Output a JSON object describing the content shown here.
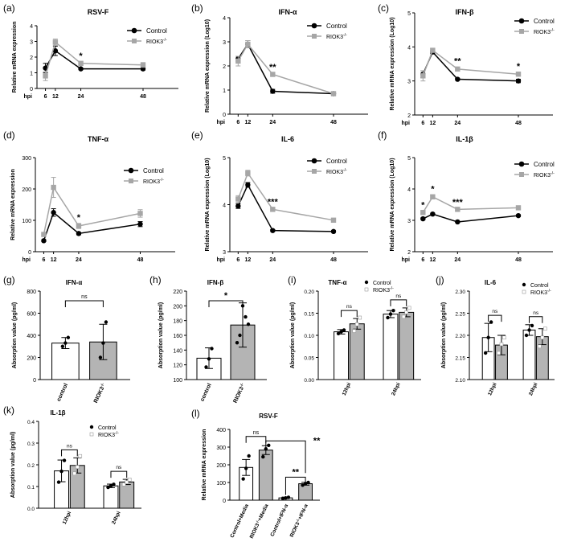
{
  "colors": {
    "control": "#000000",
    "riok3": "#a6a6a6",
    "bar_control": "#ffffff",
    "bar_riok3": "#b4b4b4"
  },
  "legend": {
    "control": "Control",
    "riok3_base": "RIOK3",
    "riok3_sup": "-/-"
  },
  "ticklabel_units": {
    "hpi": "hpi"
  },
  "group_labels": {
    "control": "control",
    "riok3_base": "RIOK3",
    "riok3_sup": "-/-",
    "h12": "12hpi",
    "h24": "24hpi",
    "l_control_media": "Control+Media",
    "l_riok3_media_mid": "+Media",
    "l_control_ifn": "Control+IFN-α",
    "l_riok3_ifn_mid": "+IFN-α"
  },
  "chart_data": [
    {
      "panel": "(a)",
      "type": "line",
      "title": "RSV-F",
      "ylabel": "Relative mRNA expression",
      "xlabel": "hpi",
      "x": [
        6,
        12,
        24,
        48
      ],
      "ylim": [
        0,
        4
      ],
      "yticks": [
        "0",
        "1",
        "2",
        "3",
        "4"
      ],
      "series": [
        {
          "name": "Control",
          "values": [
            1.3,
            2.4,
            1.25,
            1.25
          ],
          "err": [
            0.3,
            0.3,
            0.05,
            0.08
          ]
        },
        {
          "name": "RIOK3-/-",
          "values": [
            0.8,
            2.95,
            1.6,
            1.5
          ],
          "err": [
            0.3,
            0.2,
            0.1,
            0.15
          ]
        }
      ],
      "annotations": [
        {
          "x": 24,
          "text": "*"
        }
      ]
    },
    {
      "panel": "(b)",
      "type": "line",
      "title": "IFN-α",
      "ylabel": "Relative mRNA expression (Log10)",
      "xlabel": "hpi",
      "x": [
        6,
        12,
        24,
        48
      ],
      "ylim": [
        0,
        4
      ],
      "yticks": [
        "0",
        "1",
        "2",
        "3",
        "4"
      ],
      "series": [
        {
          "name": "Control",
          "values": [
            2.3,
            2.9,
            0.95,
            0.85
          ],
          "err": [
            0.1,
            0.15,
            0.08,
            0.05
          ]
        },
        {
          "name": "RIOK3-/-",
          "values": [
            2.2,
            2.9,
            1.65,
            0.85
          ],
          "err": [
            0.2,
            0.15,
            0.05,
            0.05
          ]
        }
      ],
      "annotations": [
        {
          "x": 24,
          "text": "**"
        }
      ]
    },
    {
      "panel": "(c)",
      "type": "line",
      "title": "IFN-β",
      "ylabel": "Relative mRNA expression (Log10)",
      "xlabel": "hpi",
      "x": [
        6,
        12,
        24,
        48
      ],
      "ylim": [
        2,
        5
      ],
      "yticks": [
        "2",
        "3",
        "4",
        "5"
      ],
      "series": [
        {
          "name": "Control",
          "values": [
            3.2,
            3.85,
            3.05,
            3.0
          ],
          "err": [
            0.1,
            0.05,
            0.03,
            0.05
          ]
        },
        {
          "name": "RIOK3-/-",
          "values": [
            3.15,
            3.9,
            3.35,
            3.2
          ],
          "err": [
            0.15,
            0.05,
            0.05,
            0.05
          ]
        }
      ],
      "annotations": [
        {
          "x": 24,
          "text": "**"
        },
        {
          "x": 48,
          "text": "*"
        }
      ]
    },
    {
      "panel": "(d)",
      "type": "line",
      "title": "TNF-α",
      "ylabel": "Relative mRNA expression",
      "xlabel": "hpi",
      "x": [
        6,
        12,
        24,
        48
      ],
      "ylim": [
        0,
        300
      ],
      "yticks": [
        "0",
        "100",
        "200",
        "300"
      ],
      "series": [
        {
          "name": "Control",
          "values": [
            35,
            125,
            58,
            88
          ],
          "err": [
            3,
            12,
            4,
            8
          ]
        },
        {
          "name": "RIOK3-/-",
          "values": [
            55,
            205,
            82,
            122
          ],
          "err": [
            5,
            32,
            8,
            12
          ]
        }
      ],
      "annotations": [
        {
          "x": 24,
          "text": "*"
        }
      ]
    },
    {
      "panel": "(e)",
      "type": "line",
      "title": "IL-6",
      "ylabel": "Relative mRNA expression (Log10)",
      "xlabel": "hpi",
      "x": [
        6,
        12,
        24,
        48
      ],
      "ylim": [
        3,
        5
      ],
      "yticks": [
        "3",
        "4",
        "5"
      ],
      "series": [
        {
          "name": "Control",
          "values": [
            3.97,
            4.42,
            3.45,
            3.43
          ],
          "err": [
            0.05,
            0.05,
            0.02,
            0.02
          ]
        },
        {
          "name": "RIOK3-/-",
          "values": [
            4.12,
            4.67,
            3.9,
            3.67
          ],
          "err": [
            0.07,
            0.06,
            0.03,
            0.04
          ]
        }
      ],
      "annotations": [
        {
          "x": 24,
          "text": "***"
        }
      ]
    },
    {
      "panel": "(f)",
      "type": "line",
      "title": "IL-1β",
      "ylabel": "Relative mRNA expression (Log10)",
      "xlabel": "hpi",
      "x": [
        6,
        12,
        24,
        48
      ],
      "ylim": [
        2,
        5
      ],
      "yticks": [
        "2",
        "3",
        "4",
        "5"
      ],
      "series": [
        {
          "name": "Control",
          "values": [
            3.05,
            3.2,
            2.95,
            3.15
          ],
          "err": [
            0.03,
            0.03,
            0.02,
            0.03
          ]
        },
        {
          "name": "RIOK3-/-",
          "values": [
            3.25,
            3.75,
            3.35,
            3.4
          ],
          "err": [
            0.04,
            0.06,
            0.03,
            0.03
          ]
        }
      ],
      "annotations": [
        {
          "x": 6,
          "text": "*"
        },
        {
          "x": 12,
          "text": "*"
        },
        {
          "x": 24,
          "text": "***"
        }
      ]
    },
    {
      "panel": "(g)",
      "type": "bar",
      "title": "IFN-α",
      "ylabel": "Absorption value (pg/ml)",
      "categories": [
        "control",
        "RIOK3-/-"
      ],
      "values": [
        330,
        340
      ],
      "err": [
        50,
        160
      ],
      "points": [
        [
          300,
          330,
          380
        ],
        [
          200,
          330,
          520
        ]
      ],
      "ylim": [
        0,
        800
      ],
      "yticks": [
        "0",
        "200",
        "400",
        "600",
        "800"
      ],
      "annotations": [
        {
          "text": "ns"
        }
      ]
    },
    {
      "panel": "(h)",
      "type": "bar",
      "title": "IFN-β",
      "ylabel": "Absorption value (pg/ml)",
      "categories": [
        "control",
        "RIOK3-/-"
      ],
      "values": [
        129,
        174
      ],
      "err": [
        14,
        30
      ],
      "points": [
        [
          117,
          128,
          142
        ],
        [
          150,
          160,
          200,
          185,
          175
        ]
      ],
      "ylim": [
        100,
        220
      ],
      "yticks": [
        "100",
        "120",
        "140",
        "160",
        "180",
        "200",
        "220"
      ],
      "annotations": [
        {
          "text": "*"
        }
      ]
    },
    {
      "panel": "(i)",
      "type": "bar",
      "title": "TNF-α",
      "ylabel": "Absorption value (pg/ml)",
      "categories": [
        "12hpi",
        "24hpi"
      ],
      "series": [
        {
          "name": "Control",
          "values": [
            0.108,
            0.148
          ],
          "err": [
            0.005,
            0.008
          ],
          "points": [
            [
              0.104,
              0.108,
              0.112
            ],
            [
              0.14,
              0.148,
              0.156
            ]
          ]
        },
        {
          "name": "RIOK3-/-",
          "values": [
            0.126,
            0.152
          ],
          "err": [
            0.012,
            0.01
          ],
          "points": [
            [
              0.11,
              0.125,
              0.14
            ],
            [
              0.142,
              0.152,
              0.162
            ]
          ]
        }
      ],
      "ylim": [
        0,
        0.2
      ],
      "yticks": [
        "0.00",
        "0.05",
        "0.10",
        "0.15",
        "0.20"
      ],
      "annotations": [
        {
          "text": "ns"
        },
        {
          "text": "ns"
        }
      ]
    },
    {
      "panel": "(j)",
      "type": "bar",
      "title": "IL-6",
      "ylabel": "Absorption value (pg/ml)",
      "categories": [
        "12hpi",
        "24hpi"
      ],
      "series": [
        {
          "name": "Control",
          "values": [
            2.195,
            2.212
          ],
          "err": [
            0.032,
            0.012
          ],
          "points": [
            [
              2.16,
              2.195,
              2.23
            ],
            [
              2.2,
              2.212,
              2.222
            ]
          ]
        },
        {
          "name": "RIOK3-/-",
          "values": [
            2.178,
            2.197
          ],
          "err": [
            0.022,
            0.018
          ],
          "points": [
            [
              2.16,
              2.18,
              2.195
            ],
            [
              2.175,
              2.195,
              2.215
            ]
          ]
        }
      ],
      "ylim": [
        2.1,
        2.3
      ],
      "yticks": [
        "2.10",
        "2.15",
        "2.20",
        "2.25",
        "2.30"
      ],
      "annotations": [
        {
          "text": "ns"
        },
        {
          "text": "ns"
        }
      ]
    },
    {
      "panel": "(k)",
      "type": "bar",
      "title": "IL-1β",
      "ylabel": "Absorption value (pg/ml)",
      "categories": [
        "12hpi",
        "24hpi"
      ],
      "series": [
        {
          "name": "Control",
          "values": [
            0.172,
            0.103
          ],
          "err": [
            0.05,
            0.008
          ],
          "points": [
            [
              0.12,
              0.17,
              0.22
            ],
            [
              0.096,
              0.103,
              0.11
            ]
          ]
        },
        {
          "name": "RIOK3-/-",
          "values": [
            0.197,
            0.121
          ],
          "err": [
            0.035,
            0.012
          ],
          "points": [
            [
              0.16,
              0.19,
              0.24
            ],
            [
              0.11,
              0.12,
              0.132
            ]
          ]
        }
      ],
      "ylim": [
        0,
        0.4
      ],
      "yticks": [
        "0.0",
        "0.1",
        "0.2",
        "0.3",
        "0.4"
      ],
      "annotations": [
        {
          "text": "ns"
        },
        {
          "text": "ns"
        }
      ]
    },
    {
      "panel": "(l)",
      "type": "bar",
      "title": "RSV-F",
      "ylabel": "Relative mRNA expression",
      "categories": [
        "Control+Media",
        "RIOK3-/-+Media",
        "Control+IFN-α",
        "RIOK3-/-+IFN-α"
      ],
      "values": [
        185,
        283,
        13,
        93
      ],
      "err": [
        45,
        25,
        4,
        8
      ],
      "points": [
        [
          120,
          180,
          250
        ],
        [
          245,
          290,
          310
        ],
        [
          10,
          13,
          16
        ],
        [
          85,
          93,
          100
        ]
      ],
      "ylim": [
        0,
        400
      ],
      "yticks": [
        "0",
        "100",
        "200",
        "300",
        "400"
      ],
      "annotations": [
        {
          "text": "ns"
        },
        {
          "text": "**"
        },
        {
          "text": "**"
        }
      ]
    }
  ]
}
